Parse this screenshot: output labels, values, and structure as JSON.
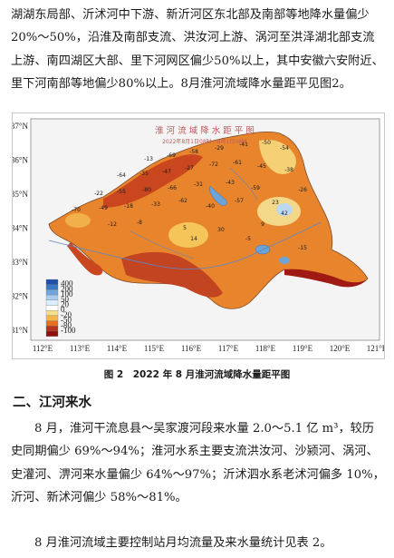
{
  "text": {
    "para1": "湖湖东局部、沂沭河中下游、新沂河区东北部及南部等地降水量偏少20%～50%，沿淮及南部支流、洪汝河上游、涡河至洪泽湖北部支流上游、南四湖区大部、里下河网区偏少50%以上，其中安徽六安附近、里下河南部等地偏少80%以上。8月淮河流域降水量距平见图2。",
    "caption": "图 2　2022 年 8 月淮河流域降水量距平图",
    "heading": "二、江河来水",
    "para2": "8 月，淮河干流息县～吴家渡河段来水量 2.0～5.1 亿 m³，较历史同期偏少 69%～94%；淮河水系主要支流洪汝河、沙颍河、涡河、史灌河、淠河来水量偏少 64%～97%；沂沭泗水系老沭河偏多 10%，沂河、新沭河偏少 58%～81%。",
    "para3": "8 月淮河流域主要控制站月均流量及来水量统计见表 2。"
  },
  "map": {
    "title": "淮 河 流 域 降 水 距 平 图",
    "subtitle": "2022年8月1日08时—9月1日08时",
    "lat_ticks": [
      "37°N",
      "36°N",
      "35°N",
      "34°N",
      "33°N",
      "32°N",
      "31°N"
    ],
    "lon_ticks": [
      "112°E",
      "113°E",
      "114°E",
      "115°E",
      "116°E",
      "117°E",
      "118°E",
      "119°E",
      "120°E",
      "121°E"
    ],
    "legend_labels": [
      "400",
      "200",
      "100",
      "50",
      "20",
      "0",
      "-20",
      "-50",
      "-80",
      "-100"
    ],
    "legend_colors": [
      "#1f4fa8",
      "#3a78c8",
      "#6fa6dc",
      "#a9cdee",
      "#dbeeff",
      "#ffffff",
      "#f7e08a",
      "#f5b649",
      "#e66f1f",
      "#b8331c",
      "#8e1010"
    ],
    "values": [
      "-13",
      "-69",
      "-58",
      "-29",
      "-41",
      "-50",
      "-54",
      "-64",
      "-35",
      "-47",
      "-27",
      "-72",
      "-61",
      "-45",
      "-38",
      "-22",
      "-55",
      "-80",
      "-66",
      "-31",
      "-43",
      "-59",
      "-26",
      "-70",
      "-49",
      "-18",
      "-33",
      "-62",
      "-40",
      "-57",
      "5",
      "14",
      "23",
      "42",
      "9",
      "-12",
      "-8",
      "30",
      "-5",
      "-15"
    ]
  }
}
